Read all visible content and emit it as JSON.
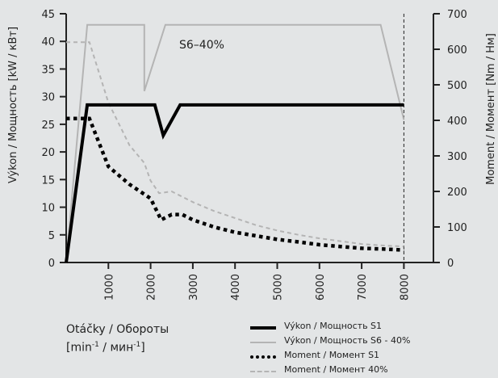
{
  "chart_data": {
    "type": "line",
    "annotation": "S6–40%",
    "ylabel_left": "Výkon / Мощность [kW / кВт]",
    "ylabel_right": "Moment / Момент [Nm / Нм]",
    "xlabel_line1": "Otáčky / Обороты",
    "xlabel_unit_1": "[min",
    "xlabel_unit_sup1": "-1",
    "xlabel_unit_2": " / мин",
    "xlabel_unit_sup2": "-1",
    "xlabel_unit_3": "]",
    "xlim": [
      0,
      8700
    ],
    "ylim_left": [
      0,
      45
    ],
    "ylim_right": [
      0,
      700
    ],
    "x_ticks": [
      1000,
      2000,
      3000,
      4000,
      5000,
      6000,
      7000,
      8000
    ],
    "y_ticks_left": [
      0,
      5,
      10,
      15,
      20,
      25,
      30,
      35,
      40,
      45
    ],
    "y_ticks_right": [
      0,
      100,
      200,
      300,
      400,
      500,
      600,
      700
    ],
    "x_max_marker": 8000,
    "series": [
      {
        "name": "Výkon / Мощность S1",
        "axis": "left",
        "color": "#000000",
        "style": "solid-thick",
        "x": [
          0,
          500,
          2100,
          2300,
          2700,
          8000
        ],
        "y": [
          0,
          28.5,
          28.5,
          23,
          28.5,
          28.5
        ]
      },
      {
        "name": "Výkon / Мощность S6 - 40%",
        "axis": "left",
        "color": "#b4b4b4",
        "style": "solid-thin",
        "x": [
          0,
          500,
          1850,
          1850,
          2350,
          7450,
          8000
        ],
        "y": [
          0,
          43,
          43,
          31,
          43,
          43,
          25.8
        ]
      },
      {
        "name": "Moment / Момент S1",
        "axis": "right",
        "color": "#000000",
        "style": "dotted-thick",
        "x": [
          0,
          550,
          1000,
          1500,
          2000,
          2250,
          2500,
          2750,
          3000,
          3500,
          4000,
          4500,
          5000,
          5500,
          6000,
          6500,
          7000,
          7500,
          8000
        ],
        "y": [
          405,
          405,
          270,
          220,
          180,
          120,
          135,
          135,
          120,
          100,
          85,
          75,
          65,
          58,
          50,
          45,
          40,
          38,
          35
        ]
      },
      {
        "name": "Moment / Момент 40%",
        "axis": "right",
        "color": "#b4b4b4",
        "style": "dashed",
        "x": [
          0,
          550,
          1000,
          1500,
          1850,
          2000,
          2200,
          2500,
          3000,
          3500,
          4000,
          4500,
          5000,
          5500,
          6000,
          6500,
          7000,
          7500,
          8000
        ],
        "y": [
          620,
          620,
          450,
          330,
          280,
          230,
          195,
          200,
          170,
          145,
          125,
          105,
          90,
          78,
          68,
          60,
          52,
          48,
          45
        ]
      }
    ]
  }
}
